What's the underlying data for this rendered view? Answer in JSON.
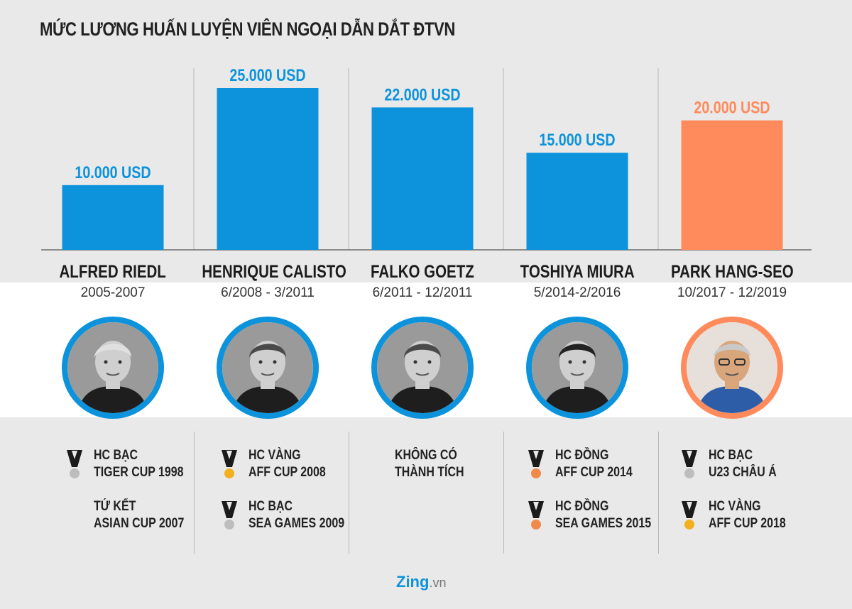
{
  "title": "MỨC LƯƠNG HUẤN LUYỆN VIÊN NGOẠI DẪN DẮT ĐTVN",
  "colors": {
    "blue": "#0c93dc",
    "orange": "#ff8a5c",
    "silver": "#bdbdbd",
    "gold": "#f2b01e",
    "bronze": "#f08a4b"
  },
  "chart_data": {
    "type": "bar",
    "categories": [
      "ALFRED RIEDL",
      "HENRIQUE CALISTO",
      "FALKO GOETZ",
      "TOSHIYA MIURA",
      "PARK HANG-SEO"
    ],
    "values": [
      10000,
      25000,
      22000,
      15000,
      20000
    ],
    "value_labels": [
      "10.000 USD",
      "25.000 USD",
      "22.000 USD",
      "15.000 USD",
      "20.000 USD"
    ],
    "title": "MỨC LƯƠNG HUẤN LUYỆN VIÊN NGOẠI DẪN DẮT ĐTVN",
    "ylim": [
      0,
      25000
    ],
    "highlight_index": 4,
    "grid": false
  },
  "coaches": [
    {
      "name": "ALFRED RIEDL",
      "period": "2005-2007",
      "avatar_icon": "coach-portrait-icon",
      "achievements": [
        {
          "medal": "silver",
          "line1": "HC BẠC",
          "line2": "TIGER CUP 1998"
        },
        {
          "medal": "none",
          "line1": "TỨ KẾT",
          "line2": "ASIAN CUP 2007"
        }
      ]
    },
    {
      "name": "HENRIQUE CALISTO",
      "period": "6/2008 - 3/2011",
      "avatar_icon": "coach-portrait-icon",
      "achievements": [
        {
          "medal": "gold",
          "line1": "HC VÀNG",
          "line2": "AFF CUP 2008"
        },
        {
          "medal": "silver",
          "line1": "HC BẠC",
          "line2": "SEA GAMES 2009"
        }
      ]
    },
    {
      "name": "FALKO GOETZ",
      "period": "6/2011 - 12/2011",
      "avatar_icon": "coach-portrait-icon",
      "achievements": [
        {
          "medal": "none",
          "line1": "KHÔNG CÓ",
          "line2": "THÀNH TÍCH"
        }
      ]
    },
    {
      "name": "TOSHIYA MIURA",
      "period": "5/2014-2/2016",
      "avatar_icon": "coach-portrait-icon",
      "achievements": [
        {
          "medal": "bronze",
          "line1": "HC ĐỒNG",
          "line2": "AFF CUP 2014"
        },
        {
          "medal": "bronze",
          "line1": "HC ĐỒNG",
          "line2": "SEA GAMES 2015"
        }
      ]
    },
    {
      "name": "PARK HANG-SEO",
      "period": "10/2017 - 12/2019",
      "avatar_icon": "coach-portrait-icon",
      "achievements": [
        {
          "medal": "silver",
          "line1": "HC BẠC",
          "line2": "U23 CHÂU Á"
        },
        {
          "medal": "gold",
          "line1": "HC VÀNG",
          "line2": "AFF CUP 2018"
        }
      ]
    }
  ],
  "logo": {
    "brand": "Zing",
    "suffix": ".vn"
  }
}
